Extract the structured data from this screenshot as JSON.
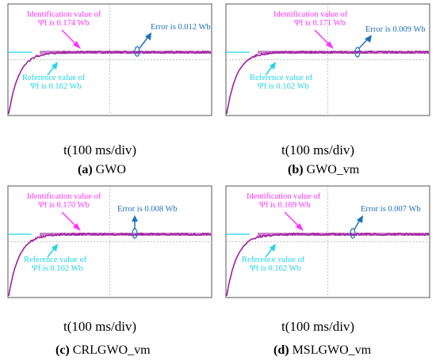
{
  "colors": {
    "trace": "#a020a0",
    "reference": "#22d4e6",
    "identification_label": "#ff30ff",
    "error_label": "#1f6fb8",
    "grid": "#a8a8a8",
    "frame": "#555555"
  },
  "chart_data": [
    {
      "type": "line",
      "panel": "a",
      "xlabel": "t(100 ms/div)",
      "caption_letter": "(a)",
      "caption_name": "GWO",
      "identification_line1": "Identification value of",
      "identification_line2": "Ψf  is 0.174 Wb",
      "reference_line1": "Reference value of",
      "reference_line2": "Ψf is 0.162 Wb",
      "error_text": "Error is 0.012 Wb",
      "identified_value": 0.174,
      "reference_value": 0.162,
      "error_value": 0.012
    },
    {
      "type": "line",
      "panel": "b",
      "xlabel": "t(100 ms/div)",
      "caption_letter": "(b)",
      "caption_name": "GWO_vm",
      "identification_line1": "Identification value of",
      "identification_line2": "Ψf  is 0.171 Wb",
      "reference_line1": "Reference value of",
      "reference_line2": "Ψf is 0.162 Wb",
      "error_text": "Error is 0.009 Wb",
      "identified_value": 0.171,
      "reference_value": 0.162,
      "error_value": 0.009
    },
    {
      "type": "line",
      "panel": "c",
      "xlabel": "t(100 ms/div)",
      "caption_letter": "(c)",
      "caption_name": "CRLGWO_vm",
      "identification_line1": "Identification value of",
      "identification_line2": "Ψf  is 0.170 Wb",
      "reference_line1": "Reference value of",
      "reference_line2": "Ψf is 0.162 Wb",
      "error_text": "Error is 0.008 Wb",
      "identified_value": 0.17,
      "reference_value": 0.162,
      "error_value": 0.008
    },
    {
      "type": "line",
      "panel": "d",
      "xlabel": "t(100 ms/div)",
      "caption_letter": "(d)",
      "caption_name": "MSLGWO_vm",
      "identification_line1": "Identification value of",
      "identification_line2": "Ψf  is 0.169 Wb",
      "reference_line1": "Reference value of",
      "reference_line2": "Ψf is 0.162 Wb",
      "error_text": "Error is 0.007 Wb",
      "identified_value": 0.169,
      "reference_value": 0.162,
      "error_value": 0.007
    }
  ]
}
